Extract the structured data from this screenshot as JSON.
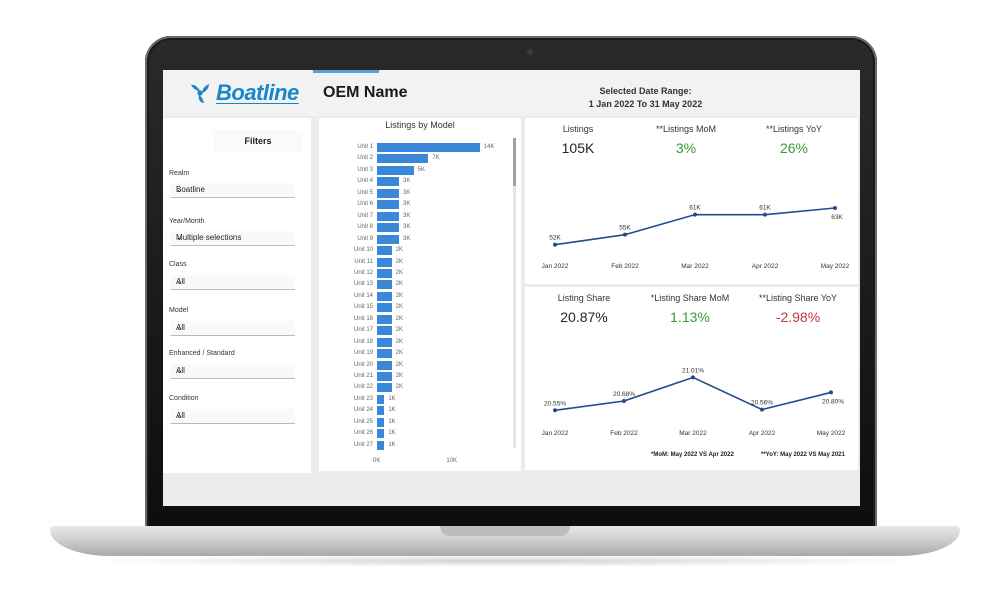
{
  "header": {
    "logo_text": "Boatline",
    "oem_name": "OEM Name",
    "date_range_label": "Selected Date Range:",
    "date_range_value": "1 Jan 2022 To 31 May 2022"
  },
  "filters": {
    "title": "Filters",
    "items": [
      {
        "label": "Realm",
        "value": "Boatline"
      },
      {
        "label": "Year/Month",
        "value": "Multiple selections"
      },
      {
        "label": "Class",
        "value": "All"
      },
      {
        "label": "Model",
        "value": "All"
      },
      {
        "label": "Enhanced / Standard",
        "value": "All"
      },
      {
        "label": "Condition",
        "value": "All"
      }
    ]
  },
  "kpi_top": [
    {
      "label": "Listings",
      "value": "105K"
    },
    {
      "label": "**Listings MoM",
      "value": "3%"
    },
    {
      "label": "**Listings YoY",
      "value": "26%"
    }
  ],
  "kpi_bottom": [
    {
      "label": "Listing Share",
      "value": "20.87%"
    },
    {
      "label": "*Listing Share MoM",
      "value": "1.13%"
    },
    {
      "label": "**Listing Share YoY",
      "value": "-2.98%"
    }
  ],
  "footnotes": {
    "mom": "*MoM: May 2022 VS Apr 2022",
    "yoy": "**YoY: May 2022 VS May 2021"
  },
  "colors": {
    "accent": "#3a86d7",
    "positive": "#3a9a3a",
    "negative": "#c0393b",
    "line": "#1f4e8f"
  },
  "chart_data": [
    {
      "type": "bar",
      "title": "Listings by Model",
      "categories": [
        "Unit 1",
        "Unit 2",
        "Unit 3",
        "Unit 4",
        "Unit 5",
        "Unit 6",
        "Unit 7",
        "Unit 8",
        "Unit 9",
        "Unit 10",
        "Unit 11",
        "Unit 12",
        "Unit 13",
        "Unit 14",
        "Unit 15",
        "Unit 16",
        "Unit 17",
        "Unit 18",
        "Unit 19",
        "Unit 20",
        "Unit 21",
        "Unit 22",
        "Unit 23",
        "Unit 24",
        "Unit 25",
        "Unit 26",
        "Unit 27"
      ],
      "values": [
        14,
        7,
        5,
        3,
        3,
        3,
        3,
        3,
        3,
        2,
        2,
        2,
        2,
        2,
        2,
        2,
        2,
        2,
        2,
        2,
        2,
        2,
        1,
        1,
        1,
        1,
        1
      ],
      "labels": [
        "14K",
        "7K",
        "5K",
        "3K",
        "3K",
        "3K",
        "3K",
        "3K",
        "3K",
        "2K",
        "2K",
        "2K",
        "2K",
        "2K",
        "2K",
        "2K",
        "2K",
        "2K",
        "2K",
        "2K",
        "2K",
        "2K",
        "1K",
        "1K",
        "1K",
        "1K",
        "1K"
      ],
      "xticks": [
        "0K",
        "10K"
      ],
      "xlim": [
        0,
        15
      ]
    },
    {
      "type": "line",
      "x": [
        "Jan 2022",
        "Feb 2022",
        "Mar 2022",
        "Apr 2022",
        "May 2022"
      ],
      "values": [
        52,
        55,
        61,
        61,
        63
      ],
      "labels": [
        "52K",
        "55K",
        "61K",
        "61K",
        "63K"
      ],
      "ylim": [
        48,
        66
      ]
    },
    {
      "type": "line",
      "x": [
        "Jan 2022",
        "Feb 2022",
        "Mar 2022",
        "Apr 2022",
        "May 2022"
      ],
      "values": [
        20.55,
        20.68,
        21.01,
        20.56,
        20.8
      ],
      "labels": [
        "20.55%",
        "20.68%",
        "21.01%",
        "20.56%",
        "20.80%"
      ],
      "ylim": [
        20.4,
        21.1
      ]
    }
  ]
}
